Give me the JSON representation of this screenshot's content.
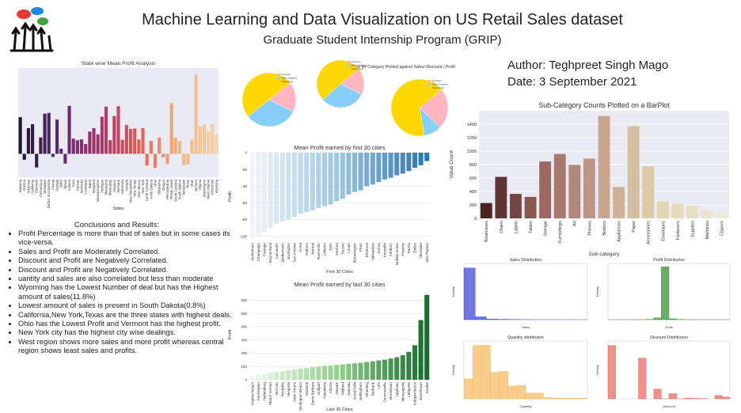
{
  "header": {
    "title": "Machine Learning and Data Visualization on US Retail Sales dataset",
    "subtitle": "Graduate Student Internship Program (GRIP)"
  },
  "author": "Author: Teghpreet Singh Mago",
  "date": "Date: 3 September 2021",
  "conclusions": {
    "heading": "Conclusions and Results:",
    "items": [
      "Profit Percentage is more than that of sales but in some cases its vice-versa.",
      "Sales and Profit are Moderately Correlated.",
      "Discount and Profit are Negatively Correlated.",
      "Discount and Profit are Negatively Correlated.",
      "uantity and sales are also correlated but less than moderate",
      "Wyoming has the Lowest Number of deal but has the Highest amount of sales(11.8%)",
      "Lowest amount of sales is present in South Dakota(0.8%)",
      "California,New York,Texas are the three states with highest deals.",
      "Ohio has the Lowest Profit and Vermont has the highest profit.",
      "New York city has the highest city wise dealings.",
      "West region shows more sales and more profit whereas central region shows least sales and profits."
    ]
  },
  "chart_data": [
    {
      "type": "bar",
      "title": "State wise Mean Profit Analysis",
      "x_label": "States",
      "categories": [
        "Alabama",
        "Arizona",
        "Arkansas",
        "California",
        "Colorado",
        "Connecticut",
        "Delaware",
        "District of Columbia",
        "Florida",
        "Georgia",
        "Idaho",
        "Illinois",
        "Indiana",
        "Iowa",
        "Kansas",
        "Kentucky",
        "Louisiana",
        "Maine",
        "Maryland",
        "Massachusetts",
        "Michigan",
        "Minnesota",
        "Mississippi",
        "Missouri",
        "Montana",
        "Nebraska",
        "Nevada",
        "New Hampshire",
        "New Jersey",
        "New Mexico",
        "New York",
        "North Carolina",
        "North Dakota",
        "Ohio",
        "Oklahoma",
        "Oregon",
        "Pennsylvania",
        "Rhode Island",
        "South Carolina",
        "South Dakota",
        "Tennessee",
        "Texas",
        "Utah",
        "Vermont",
        "Virginia",
        "Washington",
        "West Virginia",
        "Wisconsin",
        "Wyoming"
      ],
      "values": [
        94,
        -15,
        66,
        76,
        -35,
        42,
        103,
        105,
        -8,
        88,
        13,
        -25,
        123,
        39,
        35,
        37,
        25,
        57,
        66,
        50,
        95,
        121,
        35,
        97,
        122,
        36,
        74,
        64,
        65,
        37,
        66,
        -30,
        33,
        -36,
        42,
        -9,
        -26,
        130,
        42,
        33,
        -29,
        -27,
        37,
        204,
        70,
        74,
        58,
        77,
        50
      ],
      "palette": [
        "#1b1530",
        "#5a2a6e",
        "#a8326a",
        "#e05a55",
        "#f4b07a",
        "#f6d2a6"
      ],
      "ylim": [
        -60,
        220
      ]
    },
    {
      "type": "pie",
      "title": "Pie Charts for Category Plotted against Sales/ Discount / Profit",
      "categories": [
        "Furniture",
        "Office Supplies",
        "Technology"
      ],
      "colors": [
        "#ffb6c1",
        "#87cefa",
        "#ffd700"
      ],
      "series": [
        {
          "values": [
            18,
            32,
            50
          ]
        },
        {
          "values": [
            18,
            31,
            51
          ]
        },
        {
          "values": [
            23,
            10,
            67
          ]
        }
      ]
    },
    {
      "type": "bar",
      "title": "Mean Profit earned by first 30 cities",
      "x_label": "First 30 Cities",
      "y_label": "Profit",
      "categories": [
        "Bethlehem",
        "Champaign",
        "Oswego",
        "Round Rock",
        "Lancaster",
        "Quakertown",
        "Burlington",
        "San Antonio",
        "Yuma",
        "Yonkers",
        "Normal",
        "Rochester",
        "Littleton",
        "Tyler",
        "Sanford",
        "Tucson",
        "Lorain",
        "Bloomington",
        "Pharr",
        "Elmhurst",
        "Milwaukee",
        "Aurora",
        "Knoxville",
        "Ashburn",
        "Buffalo Grove",
        "Phoenix",
        "Parma",
        "Dallas",
        "Mesquite",
        "Des Plaines"
      ],
      "values": [
        -103,
        -100,
        -95,
        -90,
        -85,
        -82,
        -80,
        -77,
        -73,
        -71,
        -69,
        -66,
        -64,
        -62,
        -58,
        -55,
        -50,
        -47,
        -45,
        -40,
        -38,
        -35,
        -32,
        -30,
        -27,
        -25,
        -22,
        -18,
        -15,
        -10
      ],
      "palette": [
        "#eef4fa",
        "#9cc5e0",
        "#2a74b4"
      ],
      "ylim": [
        -105,
        0
      ],
      "yticks": [
        -100,
        -80,
        -60,
        -40,
        -20,
        0
      ],
      "grid": true
    },
    {
      "type": "bar",
      "title": "Mean Profit earned by last 30 cities",
      "x_label": "Last 30 Cities",
      "y_label": "Profit",
      "categories": [
        "Virginia Beach",
        "Farmington",
        "Hattiesburg",
        "Mount Vernon",
        "Norman",
        "Rockville",
        "Hesperia",
        "Saint Peters",
        "Huntington Beach",
        "Warwick",
        "Santa Barbara",
        "Gulfport",
        "Pasadena",
        "Atlanta",
        "Newark",
        "Midland",
        "Wausau",
        "Great Falls",
        "Bellingham",
        "Wheeling",
        "Burbank",
        "Lehi",
        "Summerville",
        "Morristown",
        "Appleton",
        "Minneapolis",
        "Lafayette",
        "Independence",
        "Jamestown",
        "Seattle"
      ],
      "values": [
        30,
        38,
        45,
        52,
        58,
        64,
        70,
        76,
        82,
        88,
        95,
        100,
        105,
        108,
        112,
        116,
        120,
        124,
        128,
        134,
        140,
        146,
        152,
        160,
        170,
        185,
        210,
        260,
        450,
        640
      ],
      "palette": [
        "#eef7ea",
        "#8fcf8a",
        "#1a6b2f"
      ],
      "ylim": [
        0,
        680
      ],
      "yticks": [
        0,
        100,
        200,
        300,
        400,
        500,
        600
      ],
      "grid": true
    },
    {
      "type": "bar",
      "title": "Sub-Category Counts Plotted on a BarPlot",
      "x_label": "Sub-category",
      "y_label": "Value Count",
      "categories": [
        "Bookcases",
        "Chairs",
        "Labels",
        "Tables",
        "Storage",
        "Furnishings",
        "Art",
        "Phones",
        "Binders",
        "Appliances",
        "Paper",
        "Accessories",
        "Envelopes",
        "Fasteners",
        "Supplies",
        "Machines",
        "Copiers"
      ],
      "values": [
        228,
        617,
        364,
        319,
        846,
        957,
        796,
        889,
        1523,
        466,
        1370,
        775,
        254,
        217,
        190,
        115,
        68
      ],
      "palette": [
        "#4a2222",
        "#9c6862",
        "#c8a690",
        "#e0d6b0",
        "#efe9d8"
      ],
      "ylim": [
        0,
        1600
      ],
      "yticks": [
        0,
        200,
        400,
        600,
        800,
        1000,
        1200,
        1400
      ],
      "grid": true
    },
    {
      "type": "histogram",
      "title": "Sales Distribution",
      "x_label": "Sales",
      "y_label": "Density",
      "bins": [
        0,
        2000,
        4000,
        6000,
        8000,
        10000,
        12000,
        14000,
        16000,
        18000,
        20000,
        22000
      ],
      "values": [
        9200,
        500,
        120,
        60,
        30,
        15,
        8,
        5,
        2,
        1,
        1
      ],
      "color": "#3b3bd6",
      "ylim": [
        0,
        10000
      ]
    },
    {
      "type": "histogram",
      "title": "Profit Distribution",
      "x_label": "Profit",
      "y_label": "Density",
      "bins": [
        -7000,
        -6000,
        -5000,
        -4000,
        -3000,
        -2000,
        -1000,
        0,
        1000,
        2000,
        3000,
        4000,
        5000,
        6000,
        7000,
        8000,
        9000
      ],
      "values": [
        1,
        2,
        3,
        5,
        10,
        40,
        300,
        9400,
        150,
        30,
        10,
        5,
        3,
        2,
        1,
        1
      ],
      "color": "#2a8a2a",
      "ylim": [
        0,
        10000
      ]
    },
    {
      "type": "histogram",
      "title": "Quantity distribution",
      "x_label": "Quantity",
      "y_label": "Density",
      "bins": [
        1,
        2,
        3,
        4,
        5,
        6,
        7,
        8,
        9,
        10,
        11,
        12,
        13,
        14,
        15
      ],
      "values": [
        899,
        2402,
        2409,
        1191,
        1230,
        572,
        606,
        257,
        258,
        57,
        34,
        23,
        27,
        29
      ],
      "color": "#f5b85a",
      "ylim": [
        0,
        2600
      ]
    },
    {
      "type": "histogram",
      "title": "Discount Distribution",
      "x_label": "Discount",
      "y_label": "Density",
      "bins": [
        0,
        0.05,
        0.1,
        0.15,
        0.2,
        0.25,
        0.3,
        0.35,
        0.4,
        0.45,
        0.5,
        0.55,
        0.6,
        0.65,
        0.7,
        0.75,
        0.8
      ],
      "values": [
        4798,
        0,
        0,
        0,
        3657,
        0,
        869,
        2,
        460,
        4,
        66,
        40,
        26,
        0,
        300,
        156
      ],
      "color": "#e8615a",
      "ylim": [
        0,
        5200
      ]
    }
  ]
}
